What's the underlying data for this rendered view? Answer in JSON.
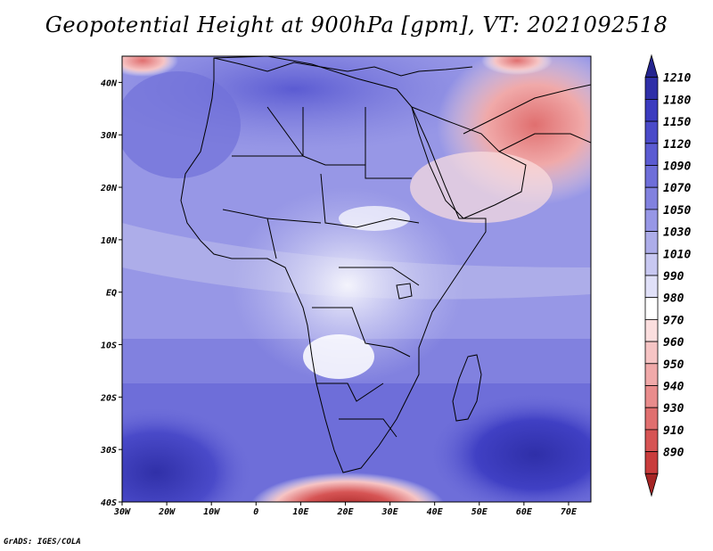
{
  "title": "Geopotential Height at 900hPa [gpm], VT: 2021092518",
  "credit": "GrADS: IGES/COLA",
  "map": {
    "lon_labels": [
      "30W",
      "20W",
      "10W",
      "0",
      "10E",
      "20E",
      "30E",
      "40E",
      "50E",
      "60E",
      "70E"
    ],
    "lat_labels": [
      "40N",
      "30N",
      "20N",
      "10N",
      "EQ",
      "10S",
      "20S",
      "30S",
      "40S"
    ],
    "lon_range": [
      -30,
      75
    ],
    "lat_range": [
      -40,
      45
    ]
  },
  "colorbar": {
    "labels": [
      "1210",
      "1180",
      "1150",
      "1120",
      "1090",
      "1070",
      "1050",
      "1030",
      "1010",
      "990",
      "980",
      "970",
      "960",
      "950",
      "940",
      "930",
      "910",
      "890"
    ],
    "colors": [
      "#24248f",
      "#2f2fa8",
      "#3b3bbf",
      "#4a4ac9",
      "#5b5bd2",
      "#6e6ed9",
      "#8181df",
      "#9797e6",
      "#adade9",
      "#c8c8f1",
      "#e0e0f8",
      "#ffffff",
      "#fbdede",
      "#f6c4c4",
      "#f0a9a9",
      "#e98c8c",
      "#e06f6f",
      "#d65454",
      "#c93c3c",
      "#a52424"
    ]
  }
}
